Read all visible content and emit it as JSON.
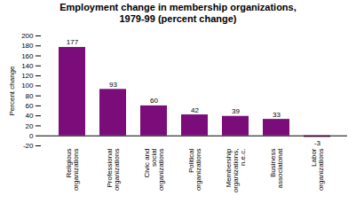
{
  "chart_data": {
    "type": "bar",
    "title": "Employment change in membership organizations,\n1979-99 (percent change)",
    "categories": [
      "Religious\norganizations",
      "Professional\norganizations",
      "Civic and\nsocial\norganizations",
      "Political\norganizations",
      "Membership\norganizations,\nn.e.c.",
      "Business\nassociatonat",
      "Labor\norganizations"
    ],
    "values": [
      177,
      93,
      60,
      42,
      39,
      33,
      -3
    ],
    "color": "#7B0D7B",
    "ylabel": "Percent change",
    "ylim": [
      -20,
      200
    ],
    "yticks": [
      -20,
      0,
      20,
      40,
      60,
      80,
      100,
      120,
      140,
      160,
      180,
      200
    ],
    "data_labels": true,
    "grid": false
  }
}
